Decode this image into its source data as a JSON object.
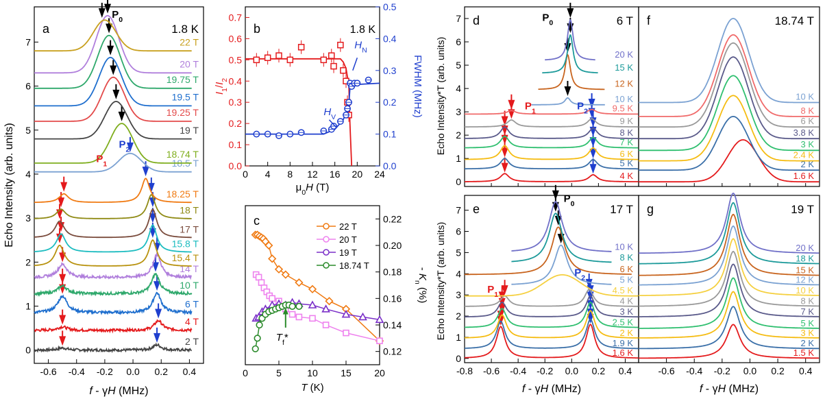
{
  "chart_data": [
    {
      "panel": "a",
      "type": "line",
      "temperature_label": "1.8 K",
      "peak_label": "P0",
      "xlabel": "f - γH (MHz)",
      "ylabel": "Echo Intensity (arb. units)",
      "xlim": [
        -0.7,
        0.5
      ],
      "ylim": [
        -0.3,
        7.8
      ],
      "xticks": [
        "-0.6",
        "-0.4",
        "-0.2",
        "0.0",
        "0.2",
        "0.4"
      ],
      "yticks": [
        "0",
        "1",
        "2",
        "3",
        "4",
        "5",
        "6",
        "7"
      ],
      "traces": [
        {
          "name": "2 T",
          "offset": 0.0,
          "color": "#444444",
          "p1": -0.5,
          "p2": 0.17,
          "h1": 0.05,
          "h2": 0.12,
          "noisy": true
        },
        {
          "name": "4 T",
          "offset": 0.45,
          "color": "#e41a1c",
          "p1": -0.5,
          "p2": 0.18,
          "h1": 0.08,
          "h2": 0.22,
          "noisy": true
        },
        {
          "name": "6 T",
          "offset": 0.85,
          "color": "#1f6fce",
          "p1": -0.5,
          "p2": 0.17,
          "h1": 0.38,
          "h2": 0.45,
          "noisy": true
        },
        {
          "name": "10 T",
          "offset": 1.28,
          "color": "#2ea86b",
          "p1": -0.5,
          "p2": 0.16,
          "h1": 0.18,
          "h2": 0.45,
          "noisy": true
        },
        {
          "name": "14 T",
          "offset": 1.65,
          "color": "#b07fdc",
          "p1": -0.5,
          "p2": 0.17,
          "h1": 0.3,
          "h2": 0.52,
          "noisy": true
        },
        {
          "name": "15.4 T",
          "offset": 1.9,
          "color": "#b8920e",
          "p1": -0.52,
          "p2": 0.14,
          "h1": 0.48,
          "h2": 0.6,
          "noisy": false
        },
        {
          "name": "15.8 T",
          "offset": 2.22,
          "color": "#1cbcc0",
          "p1": -0.51,
          "p2": 0.14,
          "h1": 0.42,
          "h2": 0.62,
          "noisy": false
        },
        {
          "name": "17 T",
          "offset": 2.55,
          "color": "#7a4b3c",
          "p1": -0.52,
          "p2": 0.14,
          "h1": 0.38,
          "h2": 0.65,
          "noisy": false
        },
        {
          "name": "18 T",
          "offset": 2.98,
          "color": "#8f8a14",
          "p1": -0.51,
          "p2": 0.13,
          "h1": 0.22,
          "h2": 0.55,
          "noisy": false
        },
        {
          "name": "18.25 T",
          "offset": 3.35,
          "color": "#f07a12",
          "p1": -0.49,
          "p2": 0.09,
          "h1": 0.2,
          "h2": 0.55,
          "noisy": false
        },
        {
          "name": "18.5 T",
          "offset": 4.05,
          "color": "#7aa1d2",
          "p1": null,
          "p2": -0.02,
          "h1": 0,
          "h2": 0.42,
          "noisy": false
        },
        {
          "name": "18.74 T",
          "offset": 4.25,
          "color": "#7fae1e",
          "p1": null,
          "p2": -0.08,
          "h1": 0,
          "h2": 0.9,
          "noisy": false
        },
        {
          "name": "19 T",
          "offset": 4.8,
          "color": "#444444",
          "p1": null,
          "p2": -0.12,
          "h1": 0,
          "h2": 0.85,
          "noisy": false
        },
        {
          "name": "19.25 T",
          "offset": 5.2,
          "color": "#e34a4a",
          "p1": null,
          "p2": -0.14,
          "h1": 0,
          "h2": 1.0,
          "noisy": false
        },
        {
          "name": "19.5 T",
          "offset": 5.55,
          "color": "#1f6fce",
          "p1": null,
          "p2": -0.16,
          "h1": 0,
          "h2": 1.1,
          "noisy": false
        },
        {
          "name": "19.75 T",
          "offset": 5.95,
          "color": "#2ea86b",
          "p1": null,
          "p2": -0.17,
          "h1": 0,
          "h2": 1.2,
          "noisy": false
        },
        {
          "name": "20 T",
          "offset": 6.3,
          "color": "#b07fdc",
          "p1": null,
          "p2": -0.18,
          "h1": 0,
          "h2": 1.3,
          "noisy": false
        },
        {
          "name": "22 T",
          "offset": 6.8,
          "color": "#c8a01e",
          "p1": null,
          "p2": -0.2,
          "h1": 0,
          "h2": 0.7,
          "noisy": false
        }
      ],
      "annotations": {
        "p1_label": "P1",
        "p2_label": "P2"
      }
    },
    {
      "panel": "b",
      "type": "scatter",
      "temperature_label": "1.8 K",
      "xlabel": "μ0H (T)",
      "ylabel_left": "I1/I2",
      "ylabel_right": "FWHM (MHz)",
      "xlim": [
        0,
        24
      ],
      "ylim_left": [
        0,
        0.75
      ],
      "ylim_right": [
        0,
        0.5
      ],
      "xticks": [
        "0",
        "4",
        "8",
        "12",
        "16",
        "20",
        "24"
      ],
      "yticks_left": [
        "0.0",
        "0.1",
        "0.2",
        "0.3",
        "0.4",
        "0.5",
        "0.6",
        "0.7"
      ],
      "yticks_right": [
        "0.0",
        "0.1",
        "0.2",
        "0.3",
        "0.4",
        "0.5"
      ],
      "ratio_series": {
        "color": "#e41a1c",
        "x": [
          2,
          4,
          6,
          8,
          10,
          14,
          15.4,
          15.8,
          17,
          17.5,
          18,
          18.25,
          18.5
        ],
        "y": [
          0.5,
          0.51,
          0.52,
          0.5,
          0.56,
          0.5,
          0.52,
          0.47,
          0.57,
          0.45,
          0.4,
          0.3,
          0.24
        ],
        "fit_x": [
          0,
          17,
          17.5,
          18,
          18.5,
          18.7,
          19
        ],
        "fit_y": [
          0.505,
          0.505,
          0.49,
          0.46,
          0.38,
          0.2,
          0.0
        ]
      },
      "fwhm_series": {
        "color": "#1f3fce",
        "x": [
          2,
          4,
          6,
          8,
          10,
          14,
          15.4,
          15.8,
          17,
          18,
          18.25,
          18.5,
          18.74,
          19,
          19.5,
          20,
          22
        ],
        "y": [
          0.1,
          0.1,
          0.095,
          0.1,
          0.105,
          0.11,
          0.115,
          0.125,
          0.14,
          0.16,
          0.18,
          0.2,
          0.26,
          0.25,
          0.26,
          0.26,
          0.27
        ],
        "fit_x": [
          0,
          14,
          16,
          17.5,
          18.5,
          18.74,
          24
        ],
        "fit_y": [
          0.1,
          0.1,
          0.115,
          0.145,
          0.19,
          0.255,
          0.26
        ]
      },
      "annotations": {
        "hv_label": "HV",
        "hn_label": "HN"
      }
    },
    {
      "panel": "c",
      "type": "line",
      "xlabel": "T (K)",
      "ylabel": "- Kn (%)",
      "xlim": [
        0,
        20
      ],
      "ylim": [
        0.11,
        0.23
      ],
      "xticks": [
        "0",
        "5",
        "10",
        "15",
        "20"
      ],
      "yticks": [
        "0.12",
        "0.14",
        "0.16",
        "0.18",
        "0.20",
        "0.22"
      ],
      "series": [
        {
          "name": "22 T",
          "color": "#f07a12",
          "marker": "diamond",
          "x": [
            1.5,
            1.8,
            2.1,
            2.4,
            2.7,
            3.0,
            3.5,
            4,
            5,
            6,
            8,
            10,
            12.5,
            15,
            20
          ],
          "y": [
            0.208,
            0.208,
            0.207,
            0.206,
            0.205,
            0.203,
            0.2,
            0.19,
            0.182,
            0.178,
            0.172,
            0.167,
            0.158,
            0.152,
            0.128
          ]
        },
        {
          "name": "20 T",
          "color": "#ee82ee",
          "marker": "square",
          "x": [
            1.6,
            2.0,
            2.4,
            2.8,
            3.2,
            3.6,
            4,
            5,
            6,
            7,
            8,
            10,
            12,
            15,
            20
          ],
          "y": [
            0.178,
            0.176,
            0.172,
            0.168,
            0.165,
            0.162,
            0.16,
            0.158,
            0.152,
            0.148,
            0.146,
            0.145,
            0.14,
            0.134,
            0.128
          ]
        },
        {
          "name": "19 T",
          "color": "#7a2fc8",
          "marker": "triangle",
          "x": [
            1.6,
            2.0,
            2.5,
            3.0,
            4,
            5,
            6,
            7,
            8,
            10,
            12,
            15,
            17.5,
            20
          ],
          "y": [
            0.145,
            0.146,
            0.15,
            0.152,
            0.155,
            0.156,
            0.155,
            0.157,
            0.156,
            0.155,
            0.152,
            0.148,
            0.146,
            0.144
          ]
        },
        {
          "name": "18.74 T",
          "color": "#2a8a2a",
          "marker": "circle",
          "x": [
            1.5,
            1.8,
            2.1,
            2.5,
            3.0,
            3.5,
            4.0,
            4.5,
            5.0,
            5.5,
            6.0,
            6.5,
            7.0,
            8.0
          ],
          "y": [
            0.122,
            0.13,
            0.14,
            0.145,
            0.148,
            0.15,
            0.151,
            0.152,
            0.153,
            0.154,
            0.155,
            0.155,
            0.154,
            0.154
          ]
        }
      ],
      "annotations": {
        "tf_label": "Tf*",
        "tf_x": 6
      }
    },
    {
      "panel": "d",
      "type": "line",
      "field_label": "6 T",
      "peak_label": "P0",
      "ylabel": "Echo Intensity*T (arb. units)",
      "xlim": [
        -0.8,
        0.5
      ],
      "ylim": [
        -0.2,
        7.5
      ],
      "yticks": [
        "0",
        "1",
        "2",
        "3",
        "4",
        "5",
        "6",
        "7"
      ],
      "traces": [
        {
          "name": "4 K",
          "offset": 0.0,
          "color": "#e41a1c",
          "kind": "split",
          "p1": -0.5,
          "p2": 0.16,
          "h1": 0.35,
          "h2": 0.3
        },
        {
          "name": "5 K",
          "offset": 0.55,
          "color": "#3a6fa8",
          "kind": "split",
          "p1": -0.5,
          "p2": 0.16,
          "h1": 0.45,
          "h2": 0.4
        },
        {
          "name": "6 K",
          "offset": 0.95,
          "color": "#f5bc12",
          "kind": "split",
          "p1": -0.5,
          "p2": 0.16,
          "h1": 0.6,
          "h2": 0.5
        },
        {
          "name": "7 K",
          "offset": 1.45,
          "color": "#2fbf6f",
          "kind": "split",
          "p1": -0.5,
          "p2": 0.16,
          "h1": 0.5,
          "h2": 0.45
        },
        {
          "name": "8 K",
          "offset": 1.85,
          "color": "#5a5a8a",
          "kind": "split",
          "p1": -0.5,
          "p2": 0.16,
          "h1": 0.5,
          "h2": 0.45
        },
        {
          "name": "9 K",
          "offset": 2.35,
          "color": "#999999",
          "kind": "split",
          "p1": -0.45,
          "p2": 0.15,
          "h1": 0.3,
          "h2": 0.35
        },
        {
          "name": "9.5 K",
          "offset": 2.9,
          "color": "#f06a6a",
          "kind": "split",
          "p1": -0.45,
          "p2": 0.15,
          "h1": 0.15,
          "h2": 0.2
        },
        {
          "name": "10 K",
          "offset": 3.3,
          "color": "#7aa1d2",
          "kind": "single",
          "p0": -0.03,
          "h0": 0.3,
          "x0": -0.3,
          "x1": 0.25
        },
        {
          "name": "12 K",
          "offset": 3.95,
          "color": "#c8641e",
          "kind": "single",
          "p0": -0.03,
          "h0": 1.5,
          "x0": -0.25,
          "x1": 0.25
        },
        {
          "name": "15 K",
          "offset": 4.65,
          "color": "#1c9a9a",
          "kind": "single",
          "p0": -0.01,
          "h0": 1.65,
          "x0": -0.22,
          "x1": 0.2
        },
        {
          "name": "20 K",
          "offset": 5.2,
          "color": "#7070c8",
          "kind": "single",
          "p0": -0.01,
          "h0": 1.75,
          "x0": -0.2,
          "x1": 0.18
        }
      ],
      "annotations": {
        "p1_label": "P1",
        "p2_label": "P2"
      }
    },
    {
      "panel": "f",
      "type": "line",
      "field_label": "18.74 T",
      "xlim": [
        -0.8,
        0.5
      ],
      "ylim": [
        -0.2,
        7.5
      ],
      "traces": [
        {
          "name": "1.6 K",
          "offset": 0.0,
          "color": "#e41a1c",
          "p0": -0.05,
          "h0": 1.8
        },
        {
          "name": "2 K",
          "offset": 0.5,
          "color": "#3a6fa8",
          "p0": -0.12,
          "h0": 2.3
        },
        {
          "name": "2.4 K",
          "offset": 0.9,
          "color": "#f5bc12",
          "p0": -0.12,
          "h0": 2.8
        },
        {
          "name": "3 K",
          "offset": 1.35,
          "color": "#2fbf6f",
          "p0": -0.12,
          "h0": 3.2
        },
        {
          "name": "3.8 K",
          "offset": 1.85,
          "color": "#5a5a8a",
          "p0": -0.12,
          "h0": 3.5
        },
        {
          "name": "6 K",
          "offset": 2.35,
          "color": "#999999",
          "p0": -0.12,
          "h0": 3.6
        },
        {
          "name": "8 K",
          "offset": 2.8,
          "color": "#f06a6a",
          "p0": -0.12,
          "h0": 3.5
        },
        {
          "name": "10 K",
          "offset": 3.4,
          "color": "#7aa1d2",
          "p0": -0.12,
          "h0": 3.6
        }
      ]
    },
    {
      "panel": "e",
      "type": "line",
      "field_label": "17 T",
      "peak_label": "P0",
      "ylabel": "Echo Intensity*T (arb. units)",
      "xlabel": "f - γH (MHz)",
      "xlim": [
        -0.8,
        0.5
      ],
      "ylim": [
        -0.2,
        7.7
      ],
      "xticks": [
        "-0.8",
        "-0.6",
        "-0.4",
        "-0.2",
        "0.0",
        "0.2",
        "0.4"
      ],
      "yticks": [
        "0",
        "1",
        "2",
        "3",
        "4",
        "5",
        "6",
        "7"
      ],
      "traces": [
        {
          "name": "1.6 K",
          "offset": 0.0,
          "color": "#e41a1c",
          "kind": "split",
          "p1": -0.53,
          "p2": 0.14,
          "h1": 1.5,
          "h2": 1.6
        },
        {
          "name": "1.9 K",
          "offset": 0.45,
          "color": "#3a6fa8",
          "kind": "split",
          "p1": -0.53,
          "p2": 0.14,
          "h1": 1.3,
          "h2": 1.4
        },
        {
          "name": "2 K",
          "offset": 0.95,
          "color": "#f5bc12",
          "kind": "split",
          "p1": -0.52,
          "p2": 0.14,
          "h1": 1.1,
          "h2": 1.3
        },
        {
          "name": "2.5 K",
          "offset": 1.45,
          "color": "#2fbf6f",
          "kind": "split",
          "p1": -0.52,
          "p2": 0.14,
          "h1": 0.9,
          "h2": 1.2
        },
        {
          "name": "3 K",
          "offset": 1.95,
          "color": "#5a5a8a",
          "kind": "split",
          "p1": -0.52,
          "p2": 0.14,
          "h1": 0.7,
          "h2": 1.0
        },
        {
          "name": "4 K",
          "offset": 2.45,
          "color": "#999999",
          "kind": "split",
          "p1": -0.5,
          "p2": 0.13,
          "h1": 0.5,
          "h2": 0.8
        },
        {
          "name": "4.5 K",
          "offset": 2.95,
          "color": "#f5d040",
          "kind": "broad",
          "p0": -0.07,
          "h0": 1.0
        },
        {
          "name": "5 K",
          "offset": 3.45,
          "color": "#7aa1d2",
          "kind": "single",
          "p0": -0.08,
          "h0": 1.9,
          "x0": -0.45,
          "x1": 0.3
        },
        {
          "name": "6 K",
          "offset": 3.95,
          "color": "#c8641e",
          "kind": "single",
          "p0": -0.1,
          "h0": 2.25,
          "x0": -0.8,
          "x1": 0.45
        },
        {
          "name": "8 K",
          "offset": 4.5,
          "color": "#1c9a9a",
          "kind": "single",
          "p0": -0.12,
          "h0": 2.35,
          "x0": -0.45,
          "x1": 0.3
        },
        {
          "name": "10 K",
          "offset": 5.0,
          "color": "#7070c8",
          "kind": "single",
          "p0": -0.12,
          "h0": 2.4,
          "x0": -0.45,
          "x1": 0.3
        }
      ],
      "annotations": {
        "p1_label": "P1",
        "p2_label": "P2"
      }
    },
    {
      "panel": "g",
      "type": "line",
      "field_label": "19 T",
      "xlabel": "f - γH (MHz)",
      "xlim": [
        -0.8,
        0.5
      ],
      "ylim": [
        -0.2,
        7.7
      ],
      "xticks": [
        "-0.6",
        "-0.4",
        "-0.2",
        "0.0",
        "0.2",
        "0.4"
      ],
      "traces": [
        {
          "name": "1.5 K",
          "offset": 0.0,
          "color": "#e41a1c",
          "p0": -0.12,
          "h0": 1.6
        },
        {
          "name": "2 K",
          "offset": 0.45,
          "color": "#3a6fa8",
          "p0": -0.12,
          "h0": 2.0
        },
        {
          "name": "3 K",
          "offset": 0.95,
          "color": "#f5bc12",
          "p0": -0.12,
          "h0": 2.2
        },
        {
          "name": "5 K",
          "offset": 1.4,
          "color": "#2fbf6f",
          "p0": -0.12,
          "h0": 2.4
        },
        {
          "name": "7 K",
          "offset": 1.95,
          "color": "#5a5a8a",
          "p0": -0.12,
          "h0": 2.5
        },
        {
          "name": "8 K",
          "offset": 2.45,
          "color": "#999999",
          "p0": -0.12,
          "h0": 2.6
        },
        {
          "name": "10 K",
          "offset": 2.95,
          "color": "#f5d040",
          "p0": -0.12,
          "h0": 2.7
        },
        {
          "name": "12 K",
          "offset": 3.45,
          "color": "#7aa1d2",
          "p0": -0.12,
          "h0": 2.8
        },
        {
          "name": "15 K",
          "offset": 3.9,
          "color": "#c8641e",
          "p0": -0.12,
          "h0": 2.9
        },
        {
          "name": "18 K",
          "offset": 4.45,
          "color": "#1c9a9a",
          "p0": -0.12,
          "h0": 2.9
        },
        {
          "name": "20 K",
          "offset": 4.95,
          "color": "#7070c8",
          "p0": -0.12,
          "h0": 2.85
        }
      ]
    }
  ]
}
